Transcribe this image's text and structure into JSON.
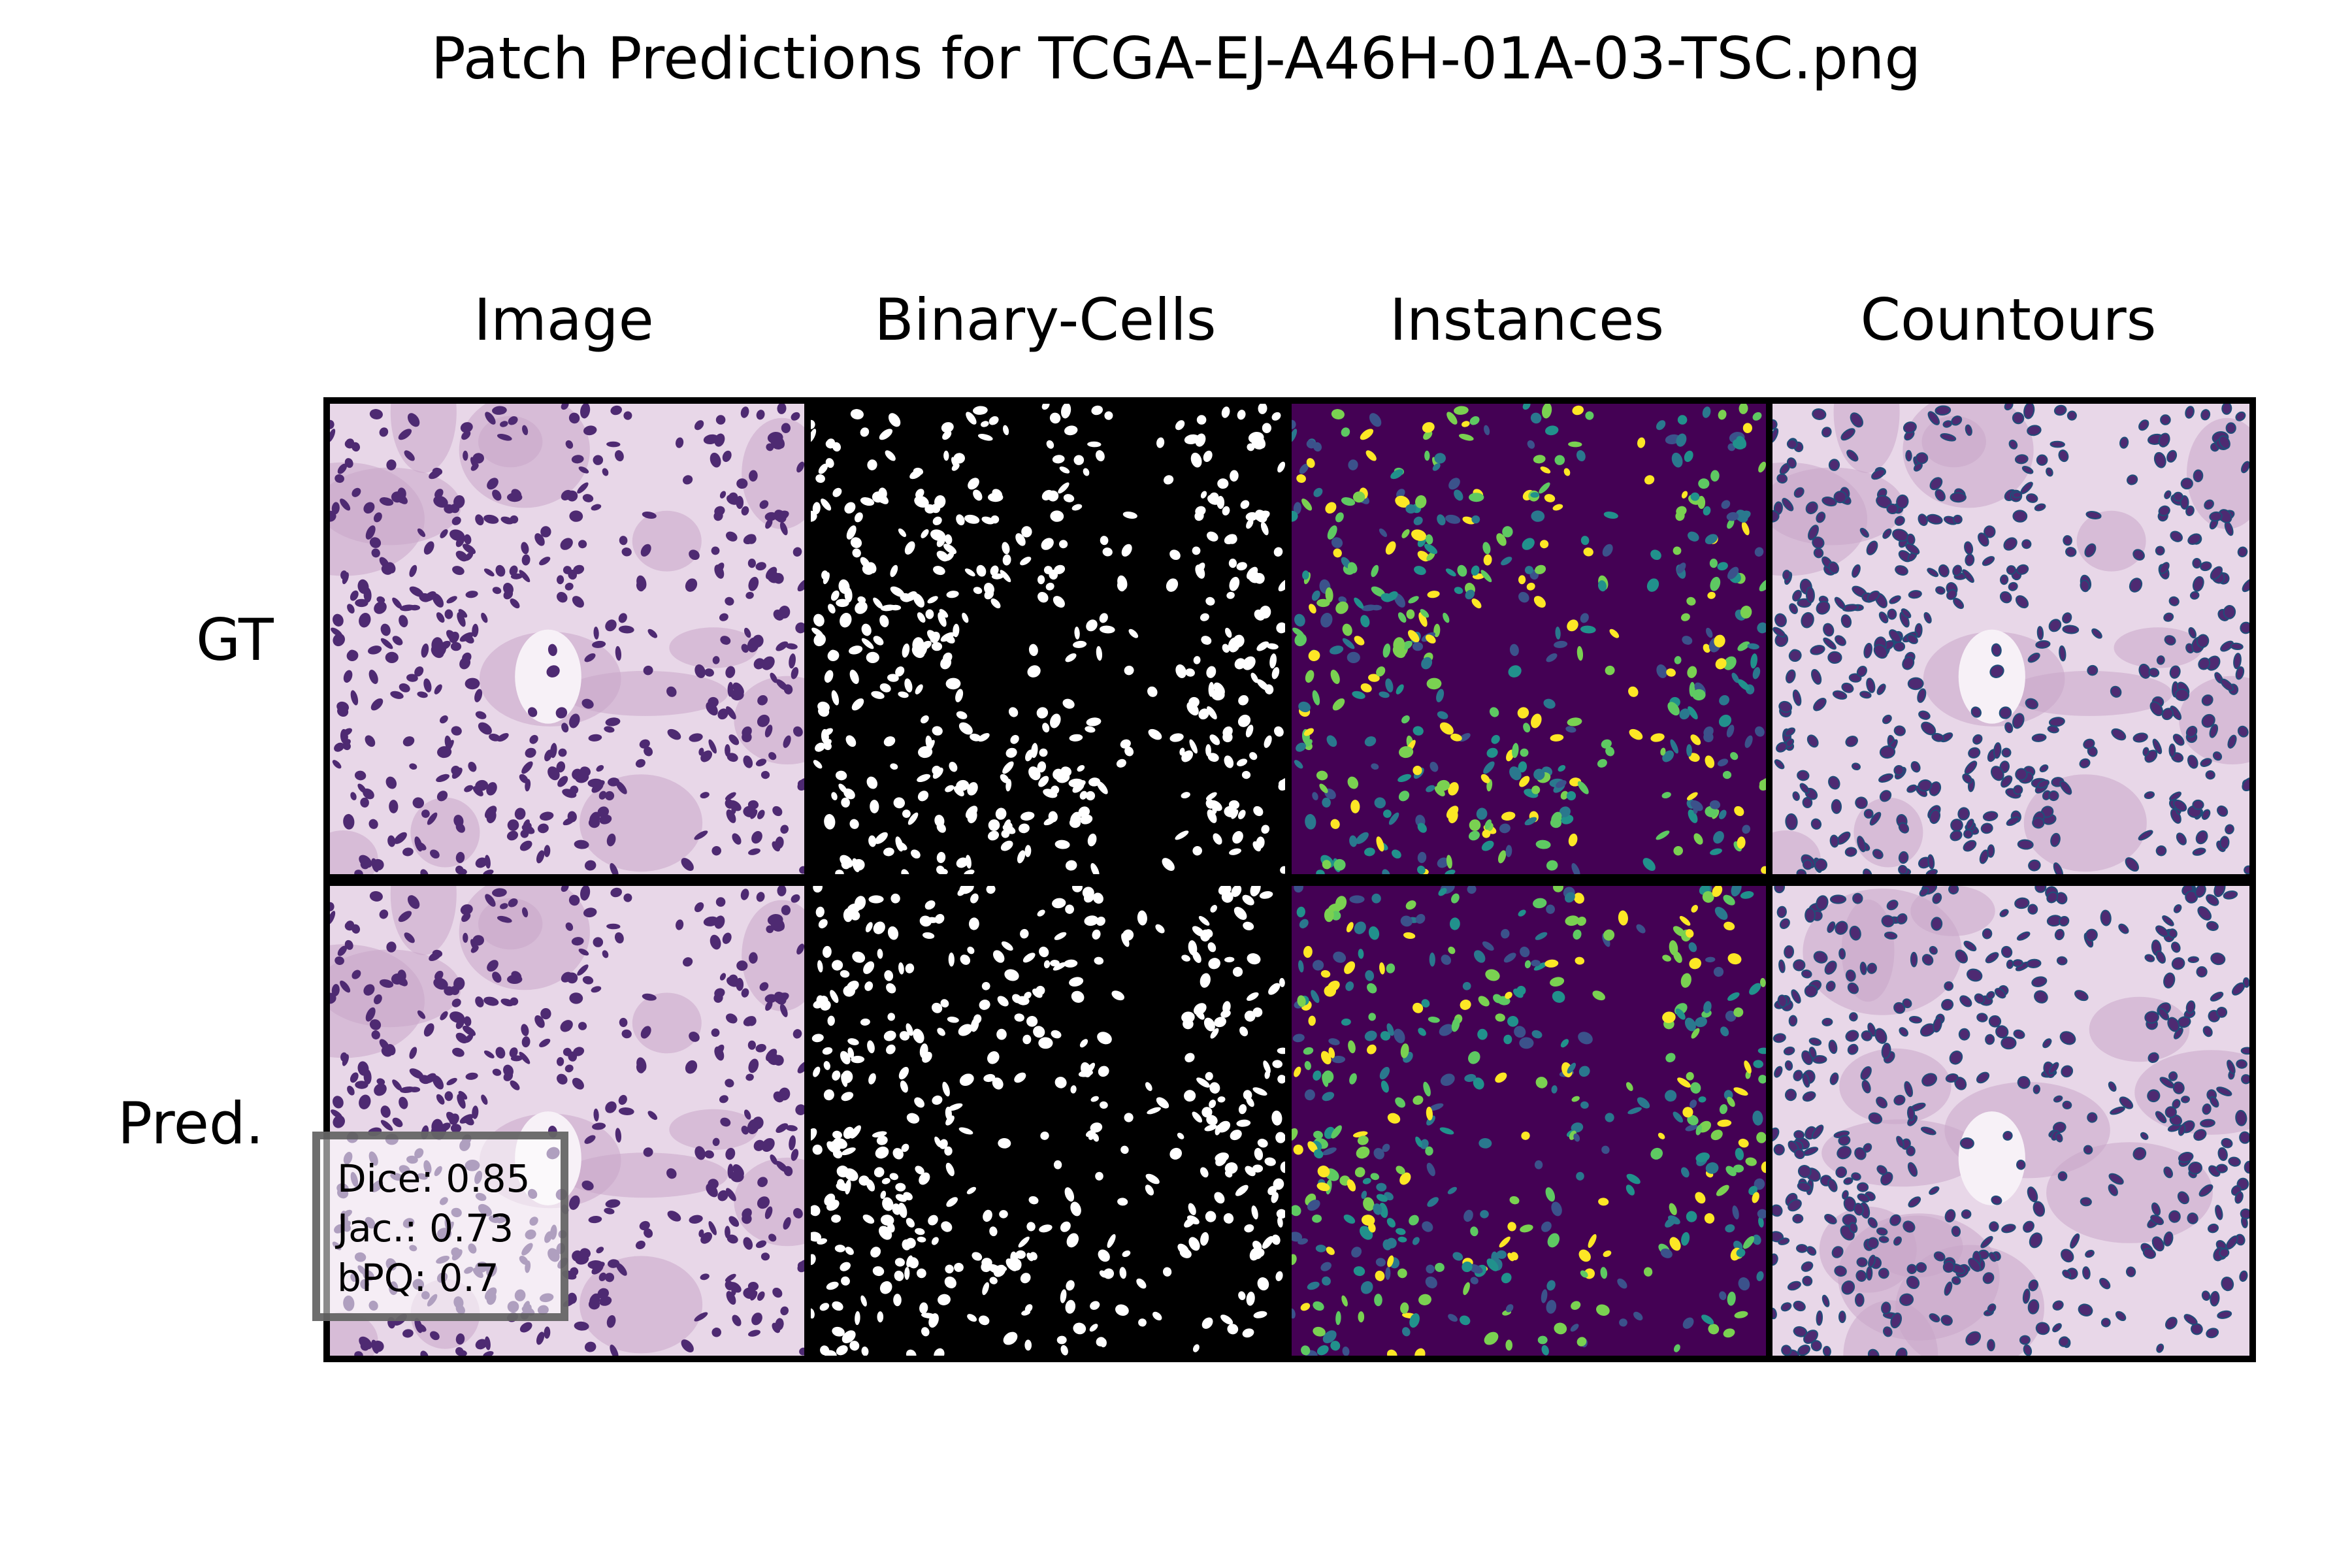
{
  "figure": {
    "title": "Patch Predictions for TCGA-EJ-A46H-01A-03-TSC.png",
    "columns": [
      "Image",
      "Binary-Cells",
      "Instances",
      "Countours"
    ],
    "rows": [
      "GT",
      "Pred."
    ]
  },
  "metrics": {
    "dice": "Dice: 0.85",
    "jaccard": "Jac.: 0.73",
    "bpq": "bPQ: 0.7"
  },
  "colors": {
    "tissue_background": "#e8d7e8",
    "tissue_stroma": "#c8a6c8",
    "nucleus": "#4e2a72",
    "binary_background": "#000000",
    "binary_cell": "#ffffff",
    "instances_background": "#440154",
    "instances_palette": [
      "#3b528b",
      "#21918c",
      "#5ec962",
      "#fde725",
      "#2a788e",
      "#7ad151"
    ],
    "contour_outline": "#1f4e79"
  },
  "icons": {
    "image_panel": "histology-image",
    "binary_panel": "binary-mask",
    "instances_panel": "instance-map",
    "contours_panel": "contour-overlay"
  }
}
